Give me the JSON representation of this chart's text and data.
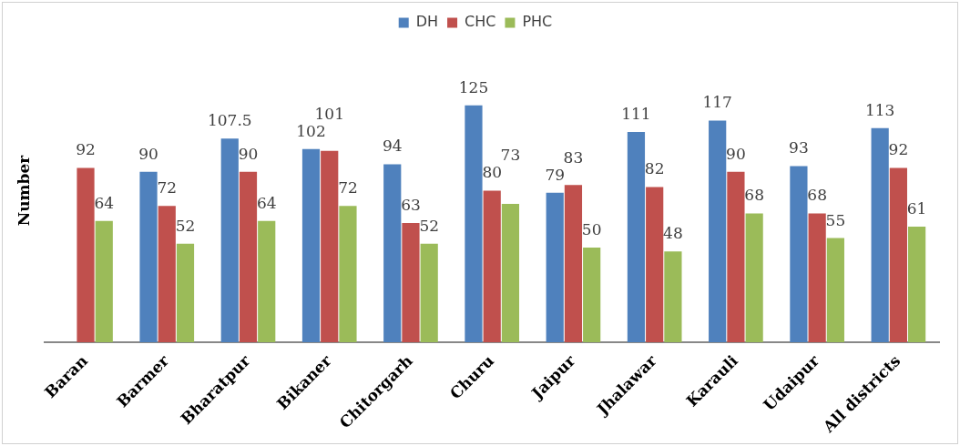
{
  "chart_data": {
    "type": "bar",
    "ylabel": "Number",
    "categories": [
      "Baran",
      "Barmer",
      "Bharatpur",
      "Bikaner",
      "Chitorgarh",
      "Churu",
      "Jaipur",
      "Jhalawar",
      "Karauli",
      "Udaipur",
      "All districts"
    ],
    "series": [
      {
        "name": "DH",
        "color": "#4f81bd",
        "values": [
          null,
          90,
          107.5,
          102,
          94,
          125,
          79,
          111,
          117,
          93,
          113
        ]
      },
      {
        "name": "CHC",
        "color": "#c0504d",
        "values": [
          92,
          72,
          90,
          101,
          63,
          80,
          83,
          82,
          90,
          68,
          92
        ]
      },
      {
        "name": "PHC",
        "color": "#9bbb59",
        "values": [
          64,
          52,
          64,
          72,
          52,
          73,
          50,
          48,
          68,
          55,
          61
        ]
      }
    ],
    "data_labels": true,
    "grid": false,
    "legend": "top"
  }
}
